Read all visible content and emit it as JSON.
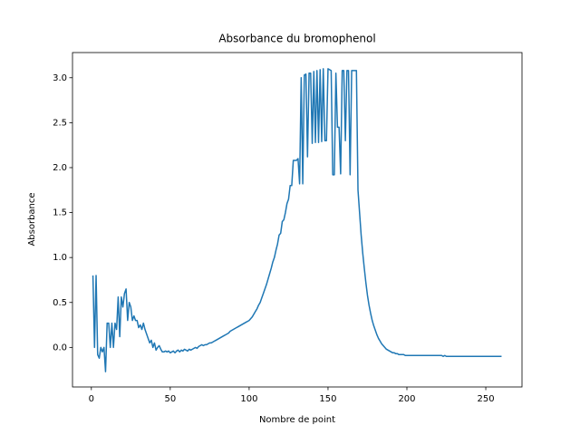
{
  "chart_data": {
    "type": "line",
    "title": "Absorbance du bromophenol",
    "x_label": "Nombre de point",
    "y_label": "Absorbance",
    "color": "#1f77b4",
    "x": [
      1,
      2,
      3,
      4,
      5,
      6,
      7,
      8,
      9,
      10,
      11,
      12,
      13,
      14,
      15,
      16,
      17,
      18,
      19,
      20,
      21,
      22,
      23,
      24,
      25,
      26,
      27,
      28,
      29,
      30,
      31,
      32,
      33,
      34,
      35,
      36,
      37,
      38,
      39,
      40,
      41,
      42,
      43,
      44,
      45,
      46,
      47,
      48,
      49,
      50,
      51,
      52,
      53,
      54,
      55,
      56,
      57,
      58,
      59,
      60,
      61,
      62,
      63,
      64,
      65,
      66,
      67,
      68,
      69,
      70,
      71,
      72,
      73,
      74,
      75,
      76,
      77,
      78,
      79,
      80,
      81,
      82,
      83,
      84,
      85,
      86,
      87,
      88,
      89,
      90,
      91,
      92,
      93,
      94,
      95,
      96,
      97,
      98,
      99,
      100,
      101,
      102,
      103,
      104,
      105,
      106,
      107,
      108,
      109,
      110,
      111,
      112,
      113,
      114,
      115,
      116,
      117,
      118,
      119,
      120,
      121,
      122,
      123,
      124,
      125,
      126,
      127,
      128,
      129,
      130,
      131,
      132,
      133,
      134,
      135,
      136,
      137,
      138,
      139,
      140,
      141,
      142,
      143,
      144,
      145,
      146,
      147,
      148,
      149,
      150,
      151,
      152,
      153,
      154,
      155,
      156,
      157,
      158,
      159,
      160,
      161,
      162,
      163,
      164,
      165,
      166,
      167,
      168,
      169,
      170,
      171,
      172,
      173,
      174,
      175,
      176,
      177,
      178,
      179,
      180,
      181,
      182,
      183,
      184,
      185,
      186,
      187,
      188,
      189,
      190,
      191,
      192,
      193,
      194,
      195,
      196,
      197,
      198,
      199,
      200,
      201,
      202,
      203,
      204,
      205,
      206,
      207,
      208,
      209,
      210,
      211,
      212,
      213,
      214,
      215,
      216,
      217,
      218,
      219,
      220,
      221,
      222,
      223,
      224,
      225,
      226,
      227,
      228,
      229,
      230,
      231,
      232,
      233,
      234,
      235,
      236,
      237,
      238,
      239,
      240,
      241,
      242,
      243,
      244,
      245,
      246,
      247,
      248,
      249,
      250,
      251,
      252,
      253,
      254,
      255,
      256,
      257,
      258,
      259,
      260
    ],
    "values": [
      0.8,
      0.0,
      0.8,
      -0.08,
      -0.12,
      0.0,
      -0.05,
      0.0,
      -0.27,
      0.27,
      0.27,
      0.0,
      0.27,
      0.0,
      0.27,
      0.2,
      0.56,
      0.12,
      0.56,
      0.45,
      0.6,
      0.65,
      0.3,
      0.5,
      0.45,
      0.3,
      0.35,
      0.3,
      0.3,
      0.22,
      0.25,
      0.2,
      0.27,
      0.2,
      0.15,
      0.1,
      0.05,
      0.08,
      0.0,
      0.05,
      -0.03,
      0.0,
      0.02,
      -0.02,
      -0.05,
      -0.05,
      -0.04,
      -0.05,
      -0.04,
      -0.06,
      -0.05,
      -0.04,
      -0.06,
      -0.04,
      -0.03,
      -0.05,
      -0.03,
      -0.04,
      -0.02,
      -0.03,
      -0.04,
      -0.02,
      -0.03,
      -0.02,
      -0.01,
      0.0,
      -0.01,
      0.01,
      0.02,
      0.03,
      0.02,
      0.03,
      0.03,
      0.04,
      0.05,
      0.05,
      0.06,
      0.07,
      0.08,
      0.09,
      0.1,
      0.11,
      0.12,
      0.13,
      0.14,
      0.15,
      0.16,
      0.18,
      0.19,
      0.2,
      0.21,
      0.22,
      0.23,
      0.24,
      0.25,
      0.26,
      0.27,
      0.28,
      0.29,
      0.3,
      0.32,
      0.34,
      0.37,
      0.4,
      0.43,
      0.47,
      0.5,
      0.55,
      0.6,
      0.65,
      0.7,
      0.76,
      0.82,
      0.88,
      0.95,
      1.0,
      1.08,
      1.15,
      1.25,
      1.27,
      1.4,
      1.42,
      1.5,
      1.6,
      1.65,
      1.8,
      1.8,
      2.08,
      2.08,
      2.08,
      2.1,
      1.82,
      3.0,
      1.82,
      3.03,
      3.04,
      2.12,
      3.05,
      3.05,
      2.27,
      3.07,
      2.28,
      3.08,
      2.28,
      3.09,
      2.29,
      3.1,
      2.3,
      2.3,
      3.1,
      3.09,
      3.08,
      1.92,
      1.92,
      3.05,
      2.45,
      2.45,
      1.93,
      3.08,
      3.08,
      2.3,
      3.08,
      3.08,
      1.92,
      3.08,
      3.08,
      3.08,
      3.08,
      1.75,
      1.5,
      1.25,
      1.05,
      0.88,
      0.72,
      0.58,
      0.47,
      0.38,
      0.3,
      0.24,
      0.19,
      0.14,
      0.1,
      0.07,
      0.04,
      0.02,
      0.0,
      -0.02,
      -0.03,
      -0.04,
      -0.05,
      -0.06,
      -0.06,
      -0.07,
      -0.07,
      -0.08,
      -0.08,
      -0.08,
      -0.08,
      -0.09,
      -0.09,
      -0.09,
      -0.09,
      -0.09,
      -0.09,
      -0.09,
      -0.09,
      -0.09,
      -0.09,
      -0.09,
      -0.09,
      -0.09,
      -0.09,
      -0.09,
      -0.09,
      -0.09,
      -0.09,
      -0.09,
      -0.09,
      -0.09,
      -0.09,
      -0.09,
      -0.09,
      -0.1,
      -0.09,
      -0.1,
      -0.1,
      -0.1,
      -0.1,
      -0.1,
      -0.1,
      -0.1,
      -0.1,
      -0.1,
      -0.1,
      -0.1,
      -0.1,
      -0.1,
      -0.1,
      -0.1,
      -0.1,
      -0.1,
      -0.1,
      -0.1,
      -0.1,
      -0.1,
      -0.1,
      -0.1,
      -0.1,
      -0.1,
      -0.1,
      -0.1,
      -0.1,
      -0.1,
      -0.1,
      -0.1,
      -0.1,
      -0.1,
      -0.1,
      -0.1,
      -0.1
    ],
    "xlim": [
      -11.95,
      272.95
    ],
    "ylim": [
      -0.44,
      3.28
    ],
    "xticks": [
      0,
      50,
      100,
      150,
      200,
      250
    ],
    "yticks": [
      {
        "value": 0,
        "label": "0.0"
      },
      {
        "value": 0.5,
        "label": "0.5"
      },
      {
        "value": 1,
        "label": "1.0"
      },
      {
        "value": 1.5,
        "label": "1.5"
      },
      {
        "value": 2,
        "label": "2.0"
      },
      {
        "value": 2.5,
        "label": "2.5"
      },
      {
        "value": 3,
        "label": "3.0"
      }
    ],
    "grid": false
  }
}
